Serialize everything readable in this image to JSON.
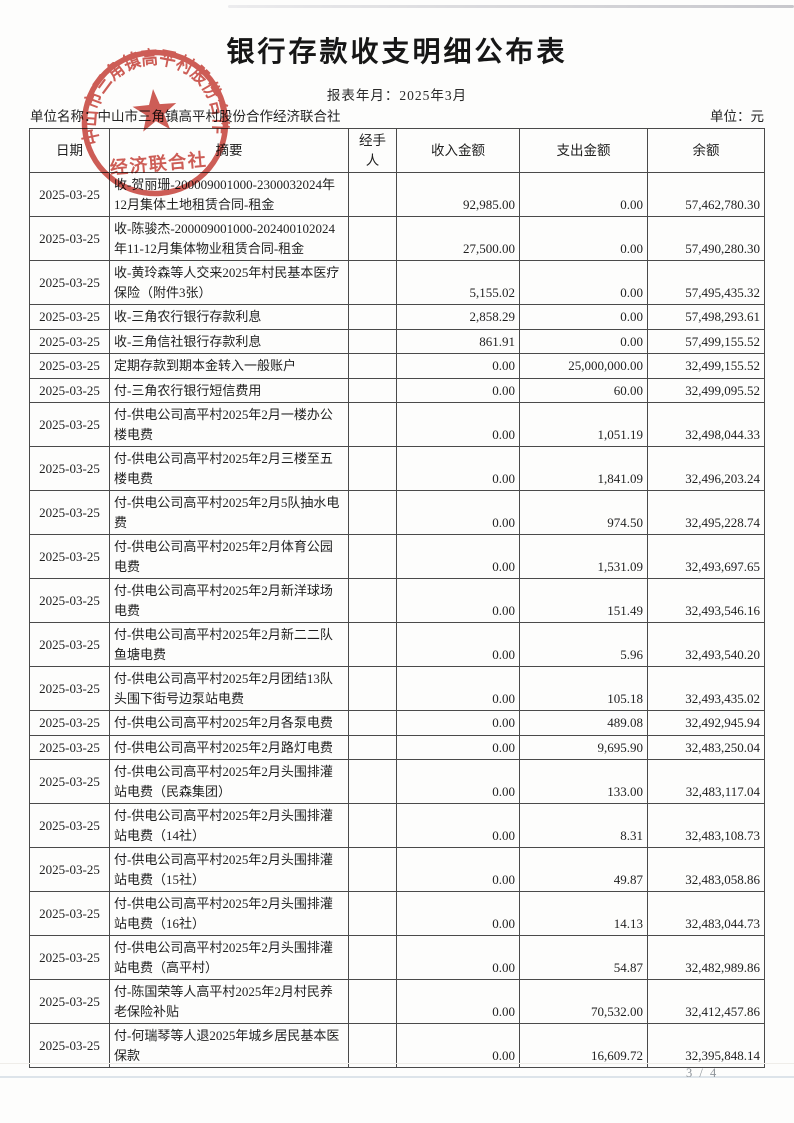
{
  "page": {
    "title": "银行存款收支明细公布表",
    "report_period_label": "报表年月：",
    "report_period_value": "2025年3月",
    "unit_name_label": "单位名称：",
    "unit_name": "中山市三角镇高平村股份合作经济联合社",
    "unit_label": "单位：元",
    "page_number": "3 / 4"
  },
  "stamp": {
    "arc_text": "中山市三角镇高平村股份合作",
    "bottom_text": "经济联合社",
    "star_icon": "red-star",
    "color": "#c43a31"
  },
  "table": {
    "columns": [
      {
        "id": "date",
        "label": "日期"
      },
      {
        "id": "summary",
        "label": "摘要"
      },
      {
        "id": "handler",
        "label": "经手人"
      },
      {
        "id": "income",
        "label": "收入金额"
      },
      {
        "id": "expense",
        "label": "支出金额"
      },
      {
        "id": "balance",
        "label": "余额"
      }
    ],
    "rows": [
      {
        "date": "2025-03-25",
        "summary": "收-贺丽珊-200009001000-2300032024年12月集体土地租赁合同-租金",
        "handler": "",
        "income": "92,985.00",
        "expense": "0.00",
        "balance": "57,462,780.30"
      },
      {
        "date": "2025-03-25",
        "summary": "收-陈骏杰-200009001000-202400102024年11-12月集体物业租赁合同-租金",
        "handler": "",
        "income": "27,500.00",
        "expense": "0.00",
        "balance": "57,490,280.30"
      },
      {
        "date": "2025-03-25",
        "summary": "收-黄玲森等人交来2025年村民基本医疗保险（附件3张）",
        "handler": "",
        "income": "5,155.02",
        "expense": "0.00",
        "balance": "57,495,435.32"
      },
      {
        "date": "2025-03-25",
        "summary": "收-三角农行银行存款利息",
        "handler": "",
        "income": "2,858.29",
        "expense": "0.00",
        "balance": "57,498,293.61"
      },
      {
        "date": "2025-03-25",
        "summary": "收-三角信社银行存款利息",
        "handler": "",
        "income": "861.91",
        "expense": "0.00",
        "balance": "57,499,155.52"
      },
      {
        "date": "2025-03-25",
        "summary": "定期存款到期本金转入一般账户",
        "handler": "",
        "income": "0.00",
        "expense": "25,000,000.00",
        "balance": "32,499,155.52"
      },
      {
        "date": "2025-03-25",
        "summary": "付-三角农行银行短信费用",
        "handler": "",
        "income": "0.00",
        "expense": "60.00",
        "balance": "32,499,095.52"
      },
      {
        "date": "2025-03-25",
        "summary": "付-供电公司高平村2025年2月一楼办公楼电费",
        "handler": "",
        "income": "0.00",
        "expense": "1,051.19",
        "balance": "32,498,044.33"
      },
      {
        "date": "2025-03-25",
        "summary": "付-供电公司高平村2025年2月三楼至五楼电费",
        "handler": "",
        "income": "0.00",
        "expense": "1,841.09",
        "balance": "32,496,203.24"
      },
      {
        "date": "2025-03-25",
        "summary": "付-供电公司高平村2025年2月5队抽水电费",
        "handler": "",
        "income": "0.00",
        "expense": "974.50",
        "balance": "32,495,228.74"
      },
      {
        "date": "2025-03-25",
        "summary": "付-供电公司高平村2025年2月体育公园电费",
        "handler": "",
        "income": "0.00",
        "expense": "1,531.09",
        "balance": "32,493,697.65"
      },
      {
        "date": "2025-03-25",
        "summary": "付-供电公司高平村2025年2月新洋球场电费",
        "handler": "",
        "income": "0.00",
        "expense": "151.49",
        "balance": "32,493,546.16"
      },
      {
        "date": "2025-03-25",
        "summary": "付-供电公司高平村2025年2月新二二队鱼塘电费",
        "handler": "",
        "income": "0.00",
        "expense": "5.96",
        "balance": "32,493,540.20"
      },
      {
        "date": "2025-03-25",
        "summary": "付-供电公司高平村2025年2月团结13队头围下街号边泵站电费",
        "handler": "",
        "income": "0.00",
        "expense": "105.18",
        "balance": "32,493,435.02"
      },
      {
        "date": "2025-03-25",
        "summary": "付-供电公司高平村2025年2月各泵电费",
        "handler": "",
        "income": "0.00",
        "expense": "489.08",
        "balance": "32,492,945.94"
      },
      {
        "date": "2025-03-25",
        "summary": "付-供电公司高平村2025年2月路灯电费",
        "handler": "",
        "income": "0.00",
        "expense": "9,695.90",
        "balance": "32,483,250.04"
      },
      {
        "date": "2025-03-25",
        "summary": "付-供电公司高平村2025年2月头围排灌站电费（民森集团）",
        "handler": "",
        "income": "0.00",
        "expense": "133.00",
        "balance": "32,483,117.04"
      },
      {
        "date": "2025-03-25",
        "summary": "付-供电公司高平村2025年2月头围排灌站电费（14社）",
        "handler": "",
        "income": "0.00",
        "expense": "8.31",
        "balance": "32,483,108.73"
      },
      {
        "date": "2025-03-25",
        "summary": "付-供电公司高平村2025年2月头围排灌站电费（15社）",
        "handler": "",
        "income": "0.00",
        "expense": "49.87",
        "balance": "32,483,058.86"
      },
      {
        "date": "2025-03-25",
        "summary": "付-供电公司高平村2025年2月头围排灌站电费（16社）",
        "handler": "",
        "income": "0.00",
        "expense": "14.13",
        "balance": "32,483,044.73"
      },
      {
        "date": "2025-03-25",
        "summary": "付-供电公司高平村2025年2月头围排灌站电费（高平村）",
        "handler": "",
        "income": "0.00",
        "expense": "54.87",
        "balance": "32,482,989.86"
      },
      {
        "date": "2025-03-25",
        "summary": "付-陈国荣等人高平村2025年2月村民养老保险补贴",
        "handler": "",
        "income": "0.00",
        "expense": "70,532.00",
        "balance": "32,412,457.86"
      },
      {
        "date": "2025-03-25",
        "summary": "付-何瑞琴等人退2025年城乡居民基本医保款",
        "handler": "",
        "income": "0.00",
        "expense": "16,609.72",
        "balance": "32,395,848.14"
      }
    ]
  }
}
